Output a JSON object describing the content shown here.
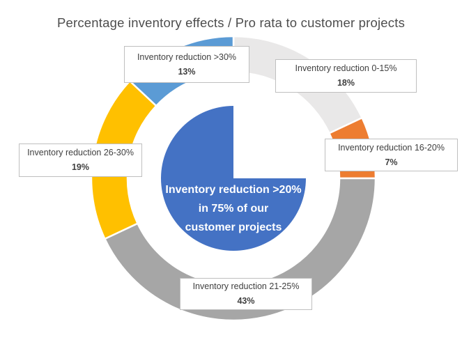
{
  "chart_data": {
    "type": "pie",
    "variant": "donut-ring-with-center-pie",
    "title": "Percentage inventory effects / Pro rata to customer projects",
    "direction": "clockwise",
    "start_angle_deg": 0,
    "separator_color": "#FFFFFF",
    "background_color": "#FFFFFF",
    "title_color": "#4D4D4D",
    "callout_text_color": "#404040",
    "callout_border_color": "#BFBFBF",
    "segments": [
      {
        "label": "Inventory reduction 0-15%",
        "value": 18,
        "value_label": "18%",
        "color": "#E9E8E8"
      },
      {
        "label": "Inventory reduction 16-20%",
        "value": 7,
        "value_label": "7%",
        "color": "#ED7D31"
      },
      {
        "label": "Inventory reduction 21-25%",
        "value": 43,
        "value_label": "43%",
        "color": "#A6A6A6"
      },
      {
        "label": "Inventory reduction 26-30%",
        "value": 19,
        "value_label": "19%",
        "color": "#FFC000"
      },
      {
        "label": "Inventory reduction >30%",
        "value": 13,
        "value_label": "13%",
        "color": "#5B9BD5"
      }
    ],
    "center_pie": {
      "percent": 75,
      "color": "#4472C4",
      "text_color": "#FFFFFF",
      "lines": [
        "Inventory reduction >20%",
        "in 75% of our",
        "customer projects"
      ]
    }
  }
}
